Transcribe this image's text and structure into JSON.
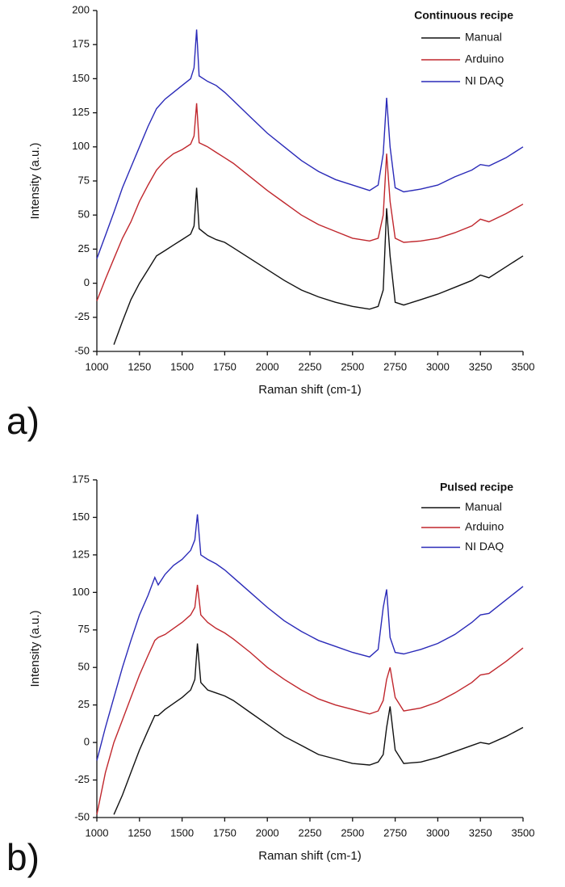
{
  "chart_data": [
    {
      "type": "line",
      "panel_label": "a)",
      "legend_title": "Continuous recipe",
      "x_label": "Raman shift (cm-1)",
      "y_label": "Intensity (a.u.)",
      "xlim": [
        1000,
        3500
      ],
      "xticks": [
        1000,
        1250,
        1500,
        1750,
        2000,
        2250,
        2500,
        2750,
        3000,
        3250,
        3500
      ],
      "ylim": [
        -50,
        200
      ],
      "yticks": [
        -50,
        -25,
        0,
        25,
        50,
        75,
        100,
        125,
        150,
        175,
        200
      ],
      "x": [
        1000,
        1050,
        1100,
        1150,
        1200,
        1250,
        1300,
        1350,
        1400,
        1450,
        1500,
        1550,
        1570,
        1585,
        1600,
        1650,
        1700,
        1750,
        1800,
        1900,
        2000,
        2100,
        2200,
        2300,
        2400,
        2500,
        2600,
        2650,
        2680,
        2700,
        2720,
        2750,
        2800,
        2900,
        3000,
        3100,
        3200,
        3250,
        3300,
        3400,
        3500
      ],
      "series": [
        {
          "name": "Manual",
          "color": "#111111",
          "values": [
            null,
            null,
            -45,
            -28,
            -12,
            0,
            10,
            20,
            24,
            28,
            32,
            36,
            42,
            70,
            40,
            35,
            32,
            30,
            26,
            18,
            10,
            2,
            -5,
            -10,
            -14,
            -17,
            -19,
            -17,
            -5,
            55,
            20,
            -14,
            -16,
            -12,
            -8,
            -3,
            2,
            6,
            4,
            12,
            20
          ]
        },
        {
          "name": "Arduino",
          "color": "#c0272d",
          "values": [
            -13,
            3,
            18,
            33,
            45,
            60,
            72,
            83,
            90,
            95,
            98,
            102,
            108,
            132,
            103,
            100,
            96,
            92,
            88,
            78,
            68,
            59,
            50,
            43,
            38,
            33,
            31,
            33,
            50,
            95,
            60,
            33,
            30,
            31,
            33,
            37,
            42,
            47,
            45,
            51,
            58
          ]
        },
        {
          "name": "NI DAQ",
          "color": "#2a2ab8",
          "values": [
            18,
            35,
            52,
            70,
            85,
            100,
            115,
            128,
            135,
            140,
            145,
            150,
            158,
            186,
            152,
            148,
            145,
            140,
            134,
            122,
            110,
            100,
            90,
            82,
            76,
            72,
            68,
            72,
            95,
            136,
            100,
            70,
            67,
            69,
            72,
            78,
            83,
            87,
            86,
            92,
            100
          ]
        }
      ]
    },
    {
      "type": "line",
      "panel_label": "b)",
      "legend_title": "Pulsed recipe",
      "x_label": "Raman shift (cm-1)",
      "y_label": "Intensity (a.u.)",
      "xlim": [
        1000,
        3500
      ],
      "xticks": [
        1000,
        1250,
        1500,
        1750,
        2000,
        2250,
        2500,
        2750,
        3000,
        3250,
        3500
      ],
      "ylim": [
        -50,
        175
      ],
      "yticks": [
        -50,
        -25,
        0,
        25,
        50,
        75,
        100,
        125,
        150,
        175
      ],
      "x": [
        1000,
        1050,
        1100,
        1150,
        1200,
        1250,
        1300,
        1340,
        1360,
        1400,
        1450,
        1500,
        1550,
        1575,
        1590,
        1610,
        1650,
        1700,
        1750,
        1800,
        1900,
        2000,
        2100,
        2200,
        2300,
        2400,
        2500,
        2600,
        2650,
        2680,
        2700,
        2720,
        2750,
        2800,
        2900,
        3000,
        3100,
        3200,
        3250,
        3300,
        3400,
        3500
      ],
      "series": [
        {
          "name": "Manual",
          "color": "#111111",
          "values": [
            null,
            null,
            -48,
            -35,
            -20,
            -5,
            8,
            18,
            18,
            22,
            26,
            30,
            35,
            42,
            66,
            40,
            35,
            33,
            31,
            28,
            20,
            12,
            4,
            -2,
            -8,
            -11,
            -14,
            -15,
            -13,
            -8,
            10,
            24,
            -5,
            -14,
            -13,
            -10,
            -6,
            -2,
            0,
            -1,
            4,
            10
          ]
        },
        {
          "name": "Arduino",
          "color": "#c0272d",
          "values": [
            -48,
            -20,
            0,
            15,
            30,
            45,
            58,
            68,
            70,
            72,
            76,
            80,
            85,
            90,
            105,
            85,
            80,
            76,
            73,
            69,
            60,
            50,
            42,
            35,
            29,
            25,
            22,
            19,
            21,
            28,
            42,
            50,
            30,
            21,
            23,
            27,
            33,
            40,
            45,
            46,
            54,
            63
          ]
        },
        {
          "name": "NI DAQ",
          "color": "#2a2ab8",
          "values": [
            -12,
            10,
            30,
            50,
            68,
            85,
            98,
            110,
            105,
            112,
            118,
            122,
            128,
            135,
            152,
            125,
            122,
            119,
            115,
            110,
            100,
            90,
            81,
            74,
            68,
            64,
            60,
            57,
            62,
            90,
            102,
            70,
            60,
            59,
            62,
            66,
            72,
            80,
            85,
            86,
            95,
            104
          ]
        }
      ]
    }
  ]
}
